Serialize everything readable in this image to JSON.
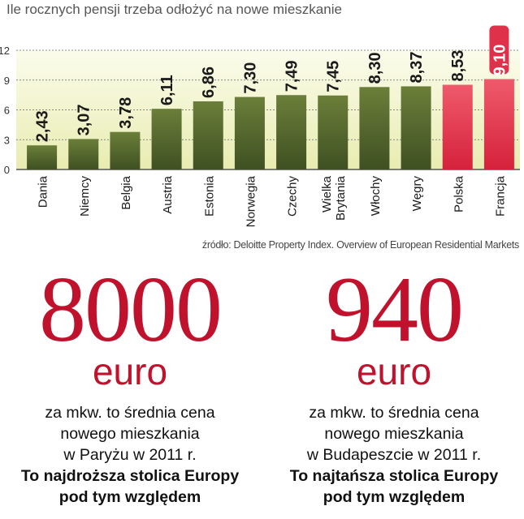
{
  "chart_data": {
    "type": "bar",
    "title": "Ile rocznych pensji trzeba odłożyć  na nowe mieszkanie",
    "categories": [
      "Dania",
      "Niemcy",
      "Belgia",
      "Austria",
      "Estonia",
      "Norwegia",
      "Czechy",
      "Wielka Brytania",
      "Włochy",
      "Węgry",
      "Polska",
      "Francja"
    ],
    "values": [
      2.43,
      3.07,
      3.78,
      6.11,
      6.86,
      7.3,
      7.49,
      7.45,
      8.3,
      8.37,
      8.53,
      9.1
    ],
    "value_labels": [
      "2,43",
      "3,07",
      "3,78",
      "6,11",
      "6,86",
      "7,30",
      "7,49",
      "7,45",
      "8,30",
      "8,37",
      "8,53",
      "9,10"
    ],
    "highlight": {
      "Polska": "#e0314a",
      "Francja": "#e0314a"
    },
    "bar_color": "#556b2f",
    "yticks": [
      0,
      3,
      6,
      9,
      12
    ],
    "ylim": [
      0,
      12
    ],
    "grid": true,
    "xlabel": "",
    "ylabel": ""
  },
  "source": "źródło: Deloitte Property Index. Overview of European Residential Markets",
  "stats": [
    {
      "number": "8000",
      "unit": "euro",
      "lines": [
        "za mkw. to średnia cena",
        "nowego mieszkania",
        "w Paryżu w 2011 r."
      ],
      "bold_lines": [
        "To najdroższa stolica Europy",
        "pod tym względem"
      ]
    },
    {
      "number": "940",
      "unit": "euro",
      "lines": [
        "za mkw. to średnia cena",
        "nowego mieszkania",
        "w Budapeszcie w 2011 r."
      ],
      "bold_lines": [
        "To najtańsza stolica Europy",
        "pod tym względem"
      ]
    }
  ],
  "colors": {
    "accent": "#c0122d",
    "bar": "#556b2f",
    "highlight": "#e0314a",
    "plot_bg": "#f3f5c8"
  }
}
